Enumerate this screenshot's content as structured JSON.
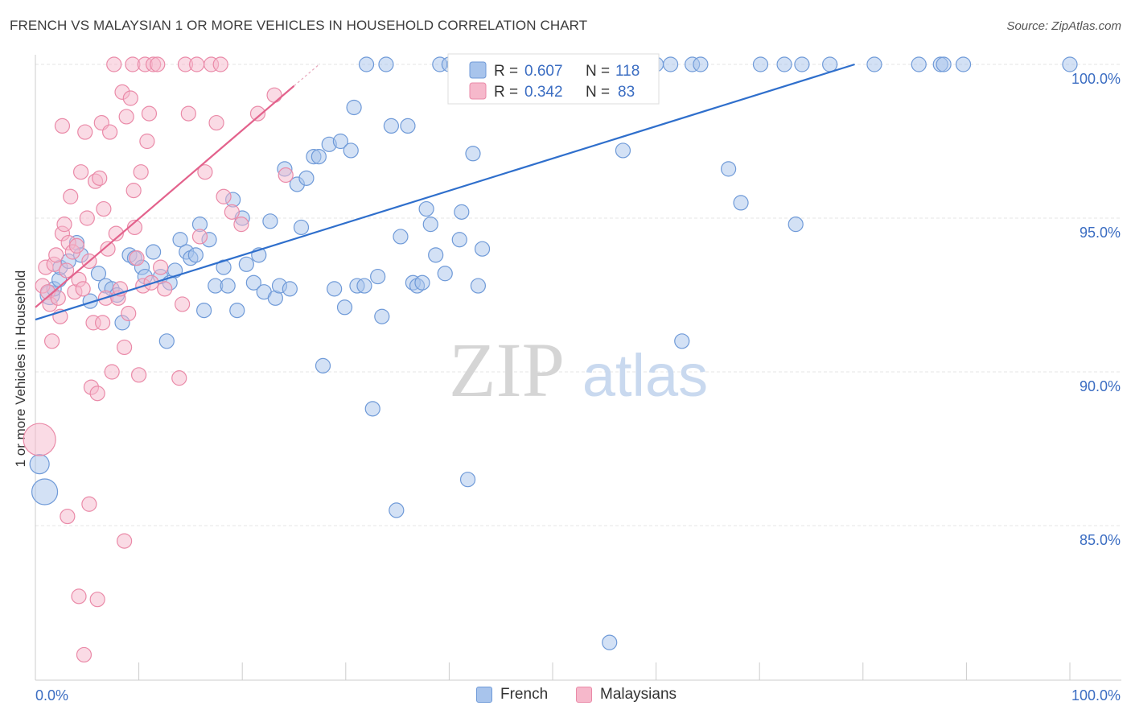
{
  "title": "FRENCH VS MALAYSIAN 1 OR MORE VEHICLES IN HOUSEHOLD CORRELATION CHART",
  "source": "Source: ZipAtlas.com",
  "watermark": {
    "zip": "ZIP",
    "atlas": "atlas"
  },
  "colors": {
    "french_fill": "#a8c4ec",
    "french_stroke": "#6f9ad8",
    "french_line": "#2f6fcc",
    "malay_fill": "#f6b8cb",
    "malay_stroke": "#ea8aa8",
    "malay_line": "#e3628c",
    "grid": "#e4e4e4",
    "tick_text": "#3b6dc2"
  },
  "legend": {
    "french": {
      "r_label": "R = ",
      "r_value": "0.607",
      "n_label": "N = ",
      "n_value": "118"
    },
    "malay": {
      "r_label": "R = ",
      "r_value": "0.342",
      "n_label": "N = ",
      "n_value": "83"
    }
  },
  "bottom_legend": {
    "french": "French",
    "malay": "Malaysians"
  },
  "chart_data": {
    "type": "scatter",
    "title": "FRENCH VS MALAYSIAN 1 OR MORE VEHICLES IN HOUSEHOLD CORRELATION CHART",
    "xlabel": "",
    "ylabel": "1 or more Vehicles in Household",
    "xlim": [
      0,
      100
    ],
    "ylim": [
      80.5,
      100.8
    ],
    "x_tick_labels": {
      "min": "0.0%",
      "max": "100.0%"
    },
    "y_ticks": [
      {
        "value": 100,
        "label": "100.0%"
      },
      {
        "value": 95,
        "label": "95.0%"
      },
      {
        "value": 90,
        "label": "90.0%"
      },
      {
        "value": 85,
        "label": "85.0%"
      }
    ],
    "series": [
      {
        "name": "French",
        "R": 0.607,
        "N": 118,
        "trend": {
          "x0": 0.0,
          "y0": 91.7,
          "x1": 79.2,
          "y1": 100.0
        },
        "points": [
          [
            0.4,
            87.0
          ],
          [
            0.9,
            86.1
          ],
          [
            1.4,
            92.5
          ],
          [
            1.8,
            92.7
          ],
          [
            2.3,
            93.0
          ],
          [
            2.4,
            93.4
          ],
          [
            3.2,
            93.6
          ],
          [
            4.0,
            94.2
          ],
          [
            4.4,
            93.8
          ],
          [
            5.3,
            92.3
          ],
          [
            6.1,
            93.2
          ],
          [
            6.8,
            92.8
          ],
          [
            7.4,
            92.7
          ],
          [
            7.9,
            92.5
          ],
          [
            8.4,
            91.6
          ],
          [
            9.1,
            93.8
          ],
          [
            9.6,
            93.7
          ],
          [
            10.3,
            93.4
          ],
          [
            10.6,
            93.1
          ],
          [
            11.4,
            93.9
          ],
          [
            12.1,
            93.1
          ],
          [
            12.7,
            91.0
          ],
          [
            13.0,
            92.9
          ],
          [
            13.5,
            93.3
          ],
          [
            14.0,
            94.3
          ],
          [
            14.6,
            93.9
          ],
          [
            15.0,
            93.7
          ],
          [
            15.5,
            93.8
          ],
          [
            15.9,
            94.8
          ],
          [
            16.3,
            92.0
          ],
          [
            16.8,
            94.3
          ],
          [
            17.4,
            92.8
          ],
          [
            18.2,
            93.4
          ],
          [
            18.6,
            92.8
          ],
          [
            19.1,
            95.6
          ],
          [
            19.5,
            92.0
          ],
          [
            20.0,
            95.0
          ],
          [
            20.4,
            93.5
          ],
          [
            21.1,
            92.9
          ],
          [
            21.6,
            93.8
          ],
          [
            22.1,
            92.6
          ],
          [
            22.7,
            94.9
          ],
          [
            23.2,
            92.4
          ],
          [
            23.6,
            92.8
          ],
          [
            24.1,
            96.6
          ],
          [
            24.6,
            92.7
          ],
          [
            25.3,
            96.1
          ],
          [
            25.7,
            94.7
          ],
          [
            26.2,
            96.3
          ],
          [
            26.9,
            97.0
          ],
          [
            27.4,
            97.0
          ],
          [
            27.8,
            90.2
          ],
          [
            28.4,
            97.4
          ],
          [
            28.9,
            92.7
          ],
          [
            29.5,
            97.5
          ],
          [
            29.9,
            92.1
          ],
          [
            30.5,
            97.2
          ],
          [
            30.8,
            98.6
          ],
          [
            31.1,
            92.8
          ],
          [
            31.8,
            92.8
          ],
          [
            32.0,
            100.0
          ],
          [
            32.6,
            88.8
          ],
          [
            33.1,
            93.1
          ],
          [
            33.5,
            91.8
          ],
          [
            33.9,
            100.0
          ],
          [
            34.4,
            98.0
          ],
          [
            34.9,
            85.5
          ],
          [
            35.3,
            94.4
          ],
          [
            36.0,
            98.0
          ],
          [
            36.5,
            92.9
          ],
          [
            36.9,
            92.8
          ],
          [
            37.4,
            92.9
          ],
          [
            37.8,
            95.3
          ],
          [
            38.2,
            94.8
          ],
          [
            38.7,
            93.8
          ],
          [
            39.1,
            100.0
          ],
          [
            39.6,
            93.2
          ],
          [
            40.0,
            100.0
          ],
          [
            40.5,
            100.0
          ],
          [
            41.0,
            94.3
          ],
          [
            41.2,
            95.2
          ],
          [
            41.8,
            86.5
          ],
          [
            42.3,
            97.1
          ],
          [
            42.8,
            92.8
          ],
          [
            43.2,
            94.0
          ],
          [
            43.7,
            100.0
          ],
          [
            44.2,
            100.0
          ],
          [
            45.1,
            100.0
          ],
          [
            45.8,
            100.0
          ],
          [
            46.3,
            100.0
          ],
          [
            47.7,
            100.0
          ],
          [
            48.4,
            100.0
          ],
          [
            49.0,
            100.0
          ],
          [
            49.3,
            100.0
          ],
          [
            51.0,
            100.0
          ],
          [
            52.1,
            100.0
          ],
          [
            56.8,
            97.2
          ],
          [
            58.4,
            100.0
          ],
          [
            61.4,
            100.0
          ],
          [
            62.5,
            91.0
          ],
          [
            63.5,
            100.0
          ],
          [
            64.3,
            100.0
          ],
          [
            67.0,
            96.6
          ],
          [
            68.2,
            95.5
          ],
          [
            70.1,
            100.0
          ],
          [
            72.4,
            100.0
          ],
          [
            74.1,
            100.0
          ],
          [
            76.8,
            100.0
          ],
          [
            81.1,
            100.0
          ],
          [
            85.4,
            100.0
          ],
          [
            87.5,
            100.0
          ],
          [
            89.7,
            100.0
          ],
          [
            100.0,
            100.0
          ],
          [
            53.3,
            100.0
          ],
          [
            55.5,
            81.2
          ],
          [
            60.0,
            100.0
          ],
          [
            87.8,
            100.0
          ],
          [
            73.5,
            94.8
          ]
        ]
      },
      {
        "name": "Malaysians",
        "R": 0.342,
        "N": 83,
        "trend": {
          "x0": 0.0,
          "y0": 92.1,
          "x1": 25.0,
          "y1": 99.3
        },
        "points": [
          [
            0.4,
            87.8
          ],
          [
            0.7,
            92.8
          ],
          [
            1.0,
            93.4
          ],
          [
            1.2,
            92.6
          ],
          [
            1.4,
            92.2
          ],
          [
            1.6,
            91.0
          ],
          [
            1.8,
            93.5
          ],
          [
            2.0,
            93.8
          ],
          [
            2.2,
            92.4
          ],
          [
            2.4,
            91.8
          ],
          [
            2.6,
            94.5
          ],
          [
            2.8,
            94.8
          ],
          [
            3.0,
            93.3
          ],
          [
            3.2,
            94.2
          ],
          [
            3.4,
            95.7
          ],
          [
            3.6,
            93.9
          ],
          [
            3.8,
            92.6
          ],
          [
            4.0,
            94.1
          ],
          [
            4.2,
            93.0
          ],
          [
            4.4,
            96.5
          ],
          [
            4.6,
            92.7
          ],
          [
            4.8,
            97.8
          ],
          [
            5.0,
            95.0
          ],
          [
            5.2,
            93.6
          ],
          [
            5.4,
            89.5
          ],
          [
            5.6,
            91.6
          ],
          [
            5.8,
            96.2
          ],
          [
            6.0,
            89.3
          ],
          [
            6.2,
            96.3
          ],
          [
            6.4,
            98.1
          ],
          [
            6.6,
            95.3
          ],
          [
            6.8,
            92.4
          ],
          [
            7.0,
            94.0
          ],
          [
            7.2,
            97.8
          ],
          [
            7.4,
            90.0
          ],
          [
            7.6,
            100.0
          ],
          [
            7.8,
            94.5
          ],
          [
            8.0,
            92.4
          ],
          [
            8.2,
            92.7
          ],
          [
            8.4,
            99.1
          ],
          [
            8.6,
            90.8
          ],
          [
            8.8,
            98.3
          ],
          [
            9.0,
            91.9
          ],
          [
            9.2,
            98.9
          ],
          [
            9.4,
            100.0
          ],
          [
            9.6,
            94.7
          ],
          [
            9.8,
            93.7
          ],
          [
            10.0,
            89.9
          ],
          [
            10.2,
            96.5
          ],
          [
            10.4,
            92.8
          ],
          [
            10.6,
            100.0
          ],
          [
            10.8,
            97.5
          ],
          [
            11.0,
            98.4
          ],
          [
            11.2,
            92.9
          ],
          [
            11.4,
            100.0
          ],
          [
            12.1,
            93.4
          ],
          [
            13.9,
            89.8
          ],
          [
            14.2,
            92.2
          ],
          [
            14.5,
            100.0
          ],
          [
            14.8,
            98.4
          ],
          [
            15.6,
            100.0
          ],
          [
            15.9,
            94.4
          ],
          [
            16.4,
            96.5
          ],
          [
            17.0,
            100.0
          ],
          [
            17.5,
            98.1
          ],
          [
            17.9,
            100.0
          ],
          [
            18.2,
            95.7
          ],
          [
            19.0,
            95.2
          ],
          [
            19.9,
            94.8
          ],
          [
            21.5,
            98.4
          ],
          [
            23.1,
            99.0
          ],
          [
            24.2,
            96.4
          ],
          [
            2.6,
            98.0
          ],
          [
            3.1,
            85.3
          ],
          [
            4.2,
            82.7
          ],
          [
            4.7,
            80.8
          ],
          [
            5.2,
            85.7
          ],
          [
            6.0,
            82.6
          ],
          [
            6.5,
            91.6
          ],
          [
            8.6,
            84.5
          ],
          [
            12.5,
            92.7
          ],
          [
            9.5,
            95.9
          ],
          [
            11.8,
            100.0
          ]
        ]
      }
    ]
  }
}
